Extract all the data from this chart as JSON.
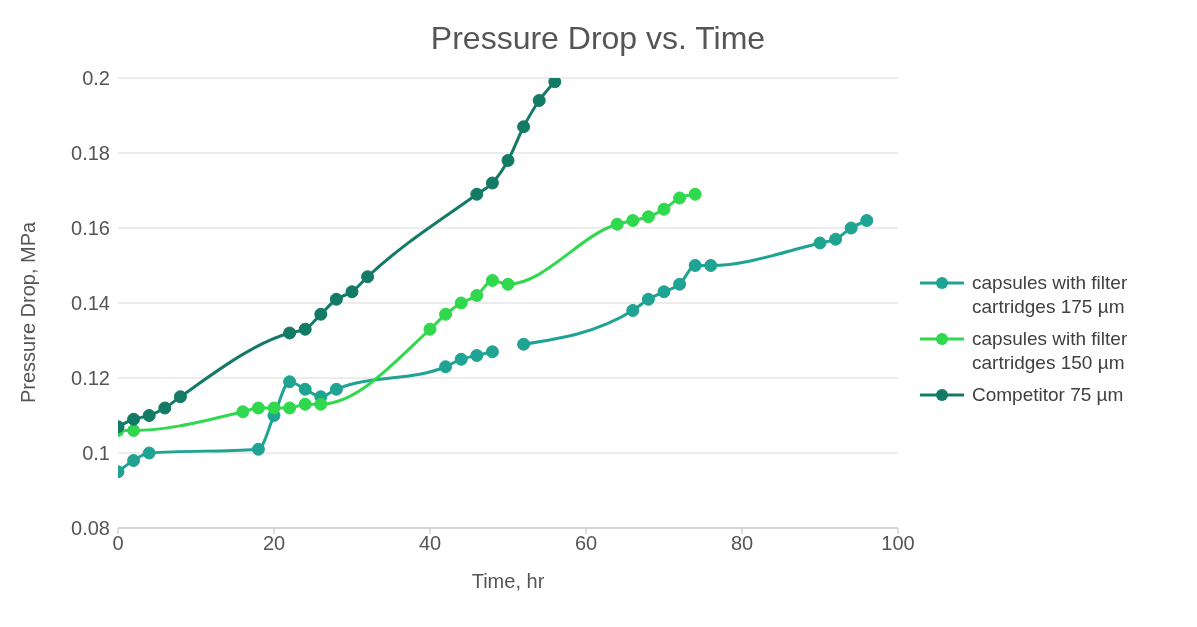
{
  "chart_data": {
    "type": "line",
    "title": "Pressure Drop vs. Time",
    "xlabel": "Time, hr",
    "ylabel": "Pressure Drop, MPa",
    "xlim": [
      0,
      100
    ],
    "xticks": [
      0,
      20,
      40,
      60,
      80,
      100
    ],
    "ylim": [
      0.08,
      0.2
    ],
    "yticks": [
      0.08,
      0.1,
      0.12,
      0.14,
      0.16,
      0.18,
      0.2
    ],
    "grid": "y",
    "legend": "right",
    "marker": "circle",
    "line_style": "solid",
    "series": [
      {
        "name": "capsules with filter cartridges 175 µm",
        "color": "#1fa392",
        "x": [
          0,
          2,
          4,
          18,
          20,
          22,
          24,
          26,
          28,
          42,
          44,
          46,
          48,
          50,
          52,
          66,
          68,
          70,
          72,
          74,
          76,
          90,
          92,
          94,
          96
        ],
        "values": [
          0.095,
          0.098,
          0.1,
          0.101,
          0.11,
          0.119,
          0.117,
          0.115,
          0.117,
          0.123,
          0.125,
          0.126,
          0.127,
          null,
          0.129,
          0.138,
          0.141,
          0.143,
          0.145,
          0.15,
          0.15,
          0.156,
          0.157,
          0.16,
          0.162
        ]
      },
      {
        "name": "capsules with filter cartridges 150 µm",
        "color": "#2fd84c",
        "x": [
          0,
          2,
          16,
          18,
          20,
          22,
          24,
          26,
          40,
          42,
          44,
          46,
          48,
          50,
          64,
          66,
          68,
          70,
          72,
          74
        ],
        "values": [
          0.106,
          0.106,
          0.111,
          0.112,
          0.112,
          0.112,
          0.113,
          0.113,
          0.133,
          0.137,
          0.14,
          0.142,
          0.146,
          0.145,
          0.161,
          0.162,
          0.163,
          0.165,
          0.168,
          0.169
        ]
      },
      {
        "name": "Competitor 75 µm",
        "color": "#137a66",
        "x": [
          0,
          2,
          4,
          6,
          8,
          22,
          24,
          26,
          28,
          30,
          32,
          46,
          48,
          50,
          52,
          54,
          56
        ],
        "values": [
          0.107,
          0.109,
          0.11,
          0.112,
          0.115,
          0.132,
          0.133,
          0.137,
          0.141,
          0.143,
          0.147,
          0.169,
          0.172,
          0.178,
          0.187,
          0.194,
          0.199
        ]
      }
    ]
  }
}
